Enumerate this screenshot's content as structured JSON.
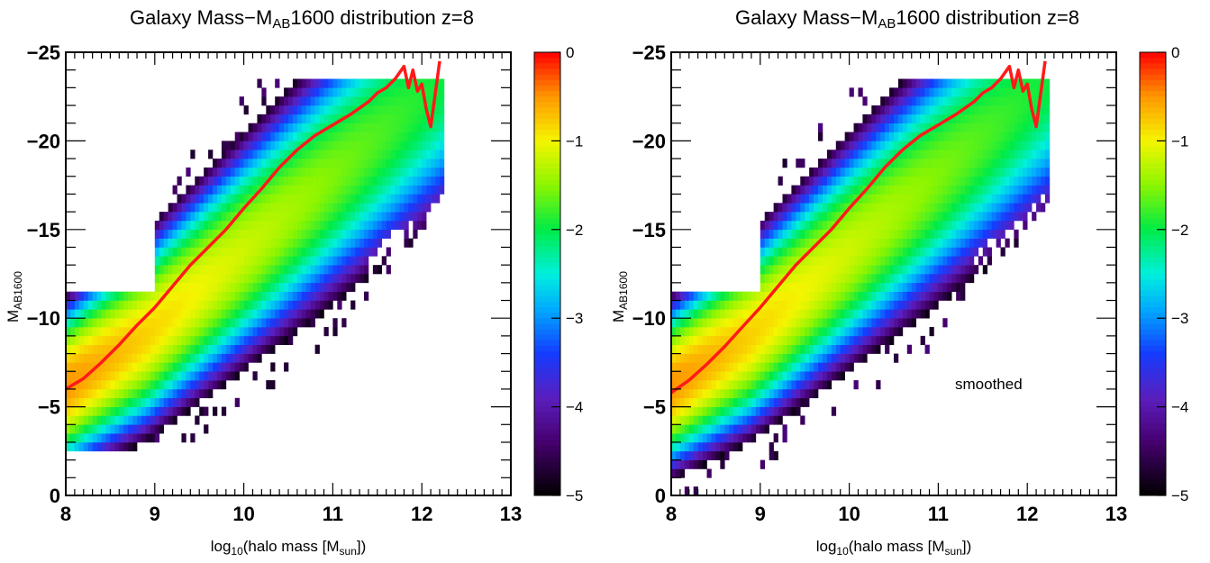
{
  "chart_data": [
    {
      "type": "heatmap",
      "title_main": "Galaxy Mass−M",
      "title_sub": "AB",
      "title_rest": "1600 distribution z=8",
      "xlabel_pre": "log",
      "xlabel_sub1": "10",
      "xlabel_mid": "(halo mass [M",
      "xlabel_sub2": "sun",
      "xlabel_post": "])",
      "ylabel_main": "M",
      "ylabel_sub": "AB1600",
      "xlim": [
        8,
        13
      ],
      "ylim": [
        0,
        -25
      ],
      "y_axis_inverted": true,
      "x_ticks": [
        "8",
        "9",
        "10",
        "11",
        "12",
        "13"
      ],
      "y_ticks": [
        "0",
        "−5",
        "−10",
        "−15",
        "−20",
        "−25"
      ],
      "colorbar": {
        "scale": "log10 fraction",
        "range": [
          -5,
          0
        ],
        "ticks": [
          "0",
          "−1",
          "−2",
          "−3",
          "−4",
          "−5"
        ]
      },
      "annotation": "",
      "smoothed": false,
      "median_line": {
        "color": "#ff1a1a",
        "x": [
          8.0,
          8.2,
          8.4,
          8.6,
          8.8,
          9.0,
          9.2,
          9.4,
          9.6,
          9.8,
          10.0,
          10.2,
          10.4,
          10.6,
          10.8,
          11.0,
          11.2,
          11.4,
          11.5,
          11.6,
          11.7,
          11.8,
          11.85,
          11.9,
          11.95,
          12.0,
          12.05,
          12.1,
          12.2
        ],
        "y": [
          -6.0,
          -6.6,
          -7.5,
          -8.5,
          -9.6,
          -10.6,
          -11.8,
          -13.0,
          -14.0,
          -15.0,
          -16.2,
          -17.3,
          -18.5,
          -19.5,
          -20.3,
          -20.9,
          -21.5,
          -22.2,
          -22.7,
          -23.0,
          -23.5,
          -24.2,
          -23.0,
          -24.0,
          -22.8,
          -23.2,
          -21.8,
          -20.8,
          -24.5
        ]
      }
    },
    {
      "type": "heatmap",
      "title_main": "Galaxy Mass−M",
      "title_sub": "AB",
      "title_rest": "1600 distribution z=8",
      "xlabel_pre": "log",
      "xlabel_sub1": "10",
      "xlabel_mid": "(halo mass [M",
      "xlabel_sub2": "sun",
      "xlabel_post": "])",
      "ylabel_main": "M",
      "ylabel_sub": "AB1600",
      "xlim": [
        8,
        13
      ],
      "ylim": [
        0,
        -25
      ],
      "y_axis_inverted": true,
      "x_ticks": [
        "8",
        "9",
        "10",
        "11",
        "12",
        "13"
      ],
      "y_ticks": [
        "0",
        "−5",
        "−10",
        "−15",
        "−20",
        "−25"
      ],
      "colorbar": {
        "scale": "log10 fraction",
        "range": [
          -5,
          0
        ],
        "ticks": [
          "0",
          "−1",
          "−2",
          "−3",
          "−4",
          "−5"
        ]
      },
      "annotation": "smoothed",
      "smoothed": true,
      "median_line": {
        "color": "#ff1a1a",
        "x": [
          8.0,
          8.2,
          8.4,
          8.6,
          8.8,
          9.0,
          9.2,
          9.4,
          9.6,
          9.8,
          10.0,
          10.2,
          10.4,
          10.6,
          10.8,
          11.0,
          11.2,
          11.4,
          11.5,
          11.6,
          11.7,
          11.8,
          11.85,
          11.9,
          11.95,
          12.0,
          12.05,
          12.1,
          12.2
        ],
        "y": [
          -5.8,
          -6.5,
          -7.4,
          -8.4,
          -9.5,
          -10.6,
          -11.8,
          -13.0,
          -14.0,
          -15.0,
          -16.2,
          -17.3,
          -18.5,
          -19.5,
          -20.3,
          -20.9,
          -21.5,
          -22.2,
          -22.7,
          -23.0,
          -23.5,
          -24.2,
          -23.0,
          -24.0,
          -22.8,
          -23.2,
          -21.8,
          -20.8,
          -24.5
        ]
      }
    }
  ]
}
